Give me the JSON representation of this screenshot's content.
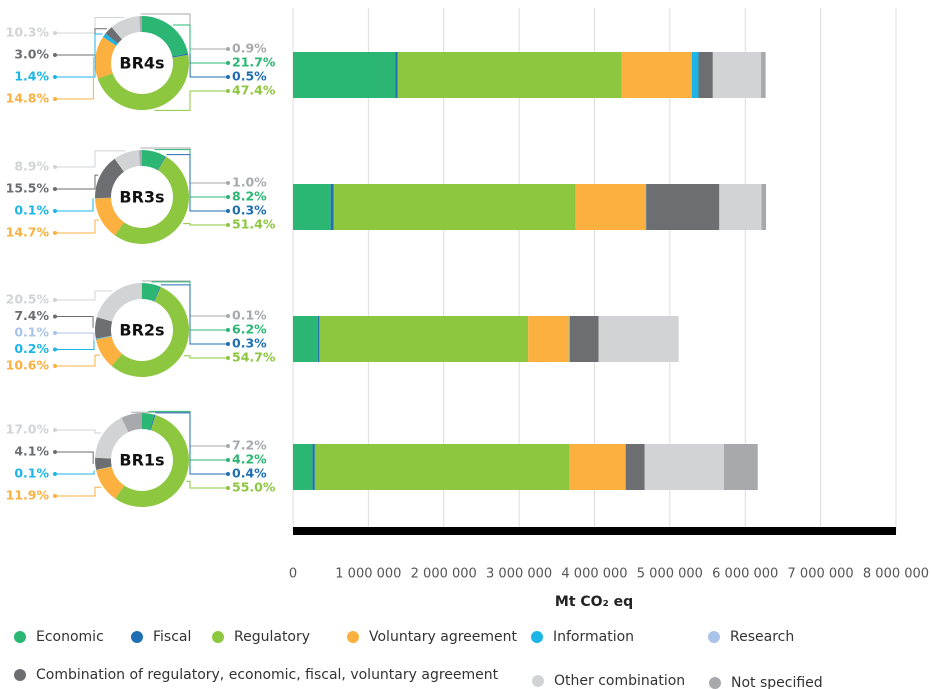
{
  "chart_data": [
    {
      "type": "bar",
      "orientation": "horizontal",
      "stacked": true,
      "categories": [
        "BR4s",
        "BR3s",
        "BR2s",
        "BR1s"
      ],
      "xlabel": "Mt CO₂ eq",
      "xlim": [
        0,
        8000000
      ],
      "xticks": [
        0,
        {
          "value": 1000000,
          "label": "1 000 000"
        },
        {
          "value": 2000000,
          "label": "2 000 000"
        },
        {
          "value": 3000000,
          "label": "3 000 000"
        },
        {
          "value": 4000000,
          "label": "4 000 000"
        },
        {
          "value": 5000000,
          "label": "5 000 000"
        },
        {
          "value": 6000000,
          "label": "6 000 000"
        },
        {
          "value": 7000000,
          "label": "7 000 000"
        },
        {
          "value": 8000000,
          "label": "8 000 000"
        }
      ],
      "grid": true,
      "legend": "bottom",
      "series": [
        {
          "name": "Economic",
          "color": "#2bb673",
          "values": [
            1360000,
            500000,
            330000,
            260000
          ]
        },
        {
          "name": "Fiscal",
          "color": "#1f6fb2",
          "values": [
            30000,
            40000,
            20000,
            30000
          ]
        },
        {
          "name": "Regulatory",
          "color": "#8dc63f",
          "values": [
            2970000,
            3210000,
            2770000,
            3380000
          ]
        },
        {
          "name": "Voluntary agreement",
          "color": "#fbb040",
          "values": [
            930000,
            930000,
            540000,
            740000
          ]
        },
        {
          "name": "Information",
          "color": "#1cb5e8",
          "values": [
            90000,
            6000,
            10000,
            6000
          ]
        },
        {
          "name": "Research",
          "color": "#a9c4e8",
          "values": [
            null,
            null,
            5000,
            null
          ]
        },
        {
          "name": "Combination of regulatory, economic, fiscal, voluntary agreement",
          "color": "#6d6e71",
          "values": [
            190000,
            970000,
            380000,
            250000
          ]
        },
        {
          "name": "Other combination",
          "color": "#d1d3d4",
          "values": [
            640000,
            560000,
            1050000,
            1050000
          ]
        },
        {
          "name": "Not specified",
          "color": "#a7a9ac",
          "values": [
            60000,
            60000,
            5000,
            450000
          ]
        }
      ]
    },
    {
      "type": "pie",
      "donut": true,
      "values": [
        21.7,
        0.5,
        47.4,
        14.8,
        1.4,
        null,
        3.0,
        10.3,
        0.9
      ],
      "value_labels": [
        "21.7%",
        "0.5%",
        "47.4%",
        "14.8%",
        "1.4%",
        null,
        "3.0%",
        "10.3%",
        "0.9%"
      ]
    },
    {
      "type": "pie",
      "donut": true,
      "values": [
        8.2,
        0.3,
        51.4,
        14.7,
        0.1,
        null,
        15.5,
        8.9,
        1.0
      ],
      "value_labels": [
        "8.2%",
        "0.3%",
        "51.4%",
        "14.7%",
        "0.1%",
        null,
        "15.5%",
        "8.9%",
        "1.0%"
      ]
    },
    {
      "type": "pie",
      "donut": true,
      "values": [
        6.2,
        0.3,
        54.7,
        10.6,
        0.2,
        0.1,
        7.4,
        20.5,
        0.1
      ],
      "value_labels": [
        "6.2%",
        "0.3%",
        "54.7%",
        "10.6%",
        "0.2%",
        "0.1%",
        "7.4%",
        "20.5%",
        "0.1%"
      ]
    },
    {
      "type": "pie",
      "donut": true,
      "values": [
        4.2,
        0.4,
        55.0,
        11.9,
        0.1,
        null,
        4.1,
        17.0,
        7.2
      ],
      "value_labels": [
        "4.2%",
        "0.4%",
        "55.0%",
        "11.9%",
        "0.1%",
        null,
        "4.1%",
        "17.0%",
        "7.2%"
      ]
    }
  ]
}
